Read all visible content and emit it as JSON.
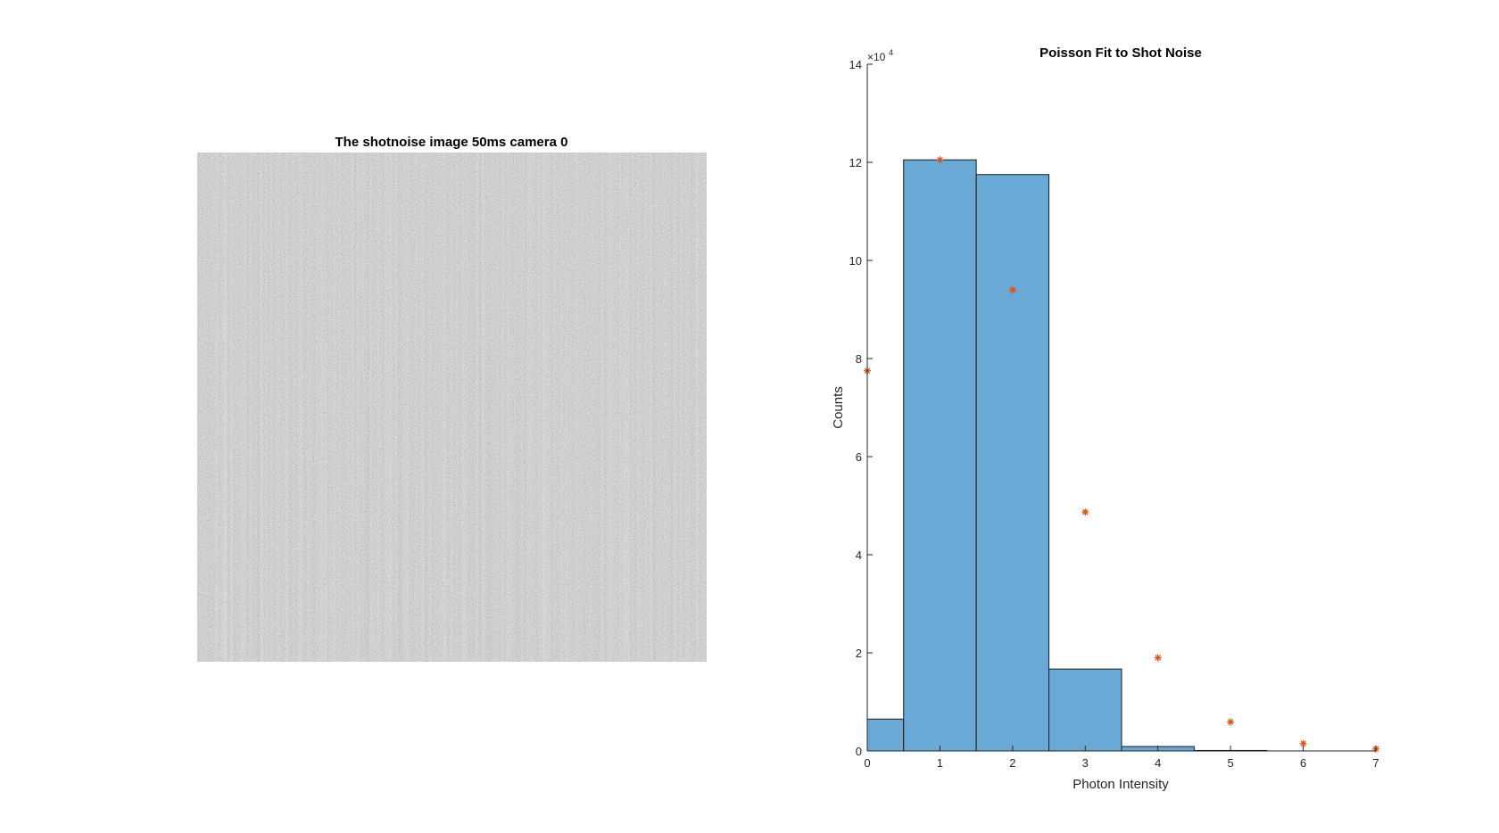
{
  "image_panel": {
    "title": "The shotnoise image 50ms camera 0"
  },
  "chart_data": {
    "type": "bar",
    "title": "Poisson Fit to Shot Noise",
    "xlabel": "Photon Intensity",
    "ylabel": "Counts",
    "y_exponent_label": "×10",
    "y_exponent_value": "4",
    "xlim": [
      0,
      7
    ],
    "ylim": [
      0,
      14
    ],
    "xticks": [
      0,
      1,
      2,
      3,
      4,
      5,
      6,
      7
    ],
    "yticks": [
      0,
      2,
      4,
      6,
      8,
      10,
      12,
      14
    ],
    "series": [
      {
        "type": "bar",
        "bins": [
          {
            "from": -0.5,
            "to": 0.5,
            "value": 0.65
          },
          {
            "from": 0.5,
            "to": 1.5,
            "value": 12.05
          },
          {
            "from": 1.5,
            "to": 2.5,
            "value": 11.75
          },
          {
            "from": 2.5,
            "to": 3.5,
            "value": 1.67
          },
          {
            "from": 3.5,
            "to": 4.5,
            "value": 0.09
          },
          {
            "from": 4.5,
            "to": 5.5,
            "value": 0.01
          },
          {
            "from": 5.5,
            "to": 6.5,
            "value": 0.0
          },
          {
            "from": 6.5,
            "to": 7.5,
            "value": 0.0
          }
        ],
        "color": "#6aa9d6"
      },
      {
        "type": "scatter",
        "x": [
          0,
          1,
          2,
          3,
          4,
          5,
          6,
          7
        ],
        "y": [
          7.75,
          12.05,
          9.4,
          4.87,
          1.9,
          0.59,
          0.15,
          0.04
        ],
        "color": "#d95319",
        "marker": "asterisk"
      }
    ],
    "grid": false
  },
  "colors": {
    "bar_fill": "#6aa9d6",
    "bar_edge": "#1a1a1a",
    "marker": "#d95319",
    "axis": "#262626"
  }
}
